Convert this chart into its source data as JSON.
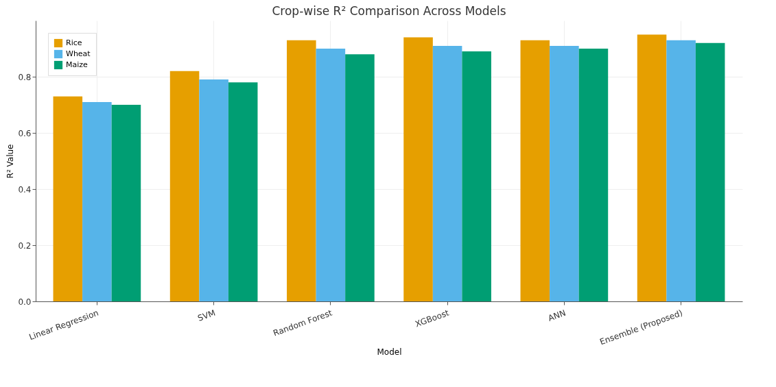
{
  "chart_data": {
    "type": "bar",
    "title": "Crop-wise R² Comparison Across Models",
    "xlabel": "Model",
    "ylabel": "R² Value",
    "categories": [
      "Linear Regression",
      "SVM",
      "Random Forest",
      "XGBoost",
      "ANN",
      "Ensemble (Proposed)"
    ],
    "series": [
      {
        "name": "Rice",
        "color": "#e69f00",
        "values": [
          0.73,
          0.82,
          0.93,
          0.94,
          0.93,
          0.95
        ]
      },
      {
        "name": "Wheat",
        "color": "#56b4e9",
        "values": [
          0.71,
          0.79,
          0.9,
          0.91,
          0.91,
          0.93
        ]
      },
      {
        "name": "Maize",
        "color": "#009e73",
        "values": [
          0.7,
          0.78,
          0.88,
          0.89,
          0.9,
          0.92
        ]
      }
    ],
    "ylim": [
      0,
      1.0
    ],
    "yticks": [
      {
        "value": 0,
        "label": "0.0"
      },
      {
        "value": 0.2,
        "label": "0.2"
      },
      {
        "value": 0.4,
        "label": "0.4"
      },
      {
        "value": 0.6,
        "label": "0.6"
      },
      {
        "value": 0.8,
        "label": "0.8"
      }
    ],
    "grid": true,
    "legend": "top left"
  }
}
